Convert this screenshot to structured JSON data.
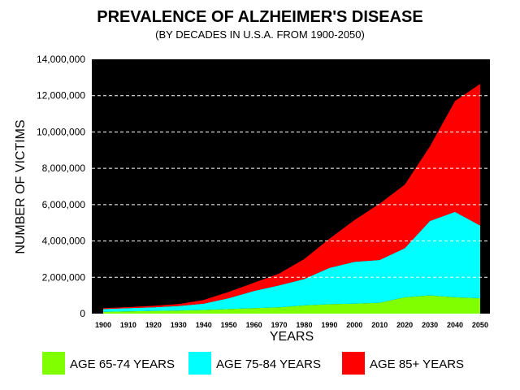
{
  "chart_data": {
    "type": "area",
    "stacked": true,
    "title": "PREVALENCE OF ALZHEIMER'S DISEASE",
    "subtitle": "(BY DECADES IN U.S.A. FROM 1900-2050)",
    "xlabel": "YEARS",
    "ylabel": "NUMBER OF VICTIMS",
    "ylim": [
      0,
      14000000
    ],
    "yticks": [
      0,
      2000000,
      4000000,
      6000000,
      8000000,
      10000000,
      12000000,
      14000000
    ],
    "ytick_labels": [
      "0",
      "2,000,000",
      "4,000,000",
      "6,000,000",
      "8,000,000",
      "10,000,000",
      "12,000,000",
      "14,000,000"
    ],
    "grid": true,
    "background": "#000000",
    "legend_position": "bottom",
    "x": [
      "1900",
      "1910",
      "1920",
      "1930",
      "1940",
      "1950",
      "1960",
      "1970",
      "1980",
      "1990",
      "2000",
      "2010",
      "2020",
      "2030",
      "2040",
      "2050"
    ],
    "series": [
      {
        "name": "AGE 65-74 YEARS",
        "color": "#80ff00",
        "values": [
          100000,
          120000,
          150000,
          170000,
          200000,
          250000,
          300000,
          350000,
          450000,
          520000,
          550000,
          600000,
          900000,
          1000000,
          900000,
          850000
        ]
      },
      {
        "name": "AGE 75-84 YEARS",
        "color": "#00ffff",
        "values": [
          150000,
          180000,
          200000,
          250000,
          350000,
          600000,
          950000,
          1200000,
          1450000,
          2000000,
          2300000,
          2350000,
          2700000,
          4100000,
          4700000,
          4000000
        ]
      },
      {
        "name": "AGE 85+ YEARS",
        "color": "#ff0000",
        "values": [
          50000,
          60000,
          80000,
          110000,
          200000,
          350000,
          450000,
          650000,
          1100000,
          1600000,
          2300000,
          3100000,
          3500000,
          4100000,
          6100000,
          7800000
        ]
      }
    ]
  }
}
